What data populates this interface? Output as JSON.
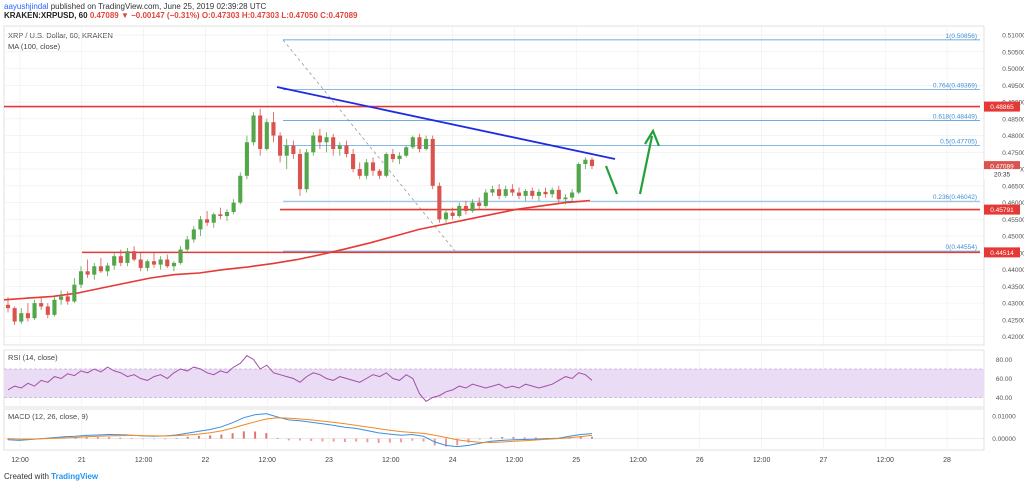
{
  "header": {
    "author": "aayushjindal",
    "published": "published on TradingView.com, June 25, 2019 02:39:28 UTC",
    "symbol_line": "KRAKEN:XRPUSD, 60",
    "change": "0.47089 ▼ −0.00147 (−0.31%) O:0.47303 H:0.47303 L:0.47050 C:0.47089"
  },
  "pane_labels": {
    "main_title": "XRP / U.S. Dollar, 60, KRAKEN",
    "ma_label": "MA (100, close)",
    "rsi_label": "RSI (14, close)",
    "macd_label": "MACD (12, 26, close, 9)"
  },
  "footer": {
    "created_with": "Created with",
    "brand": "TradingView"
  },
  "colors": {
    "up": "#53a64a",
    "down": "#d9534f",
    "ma": "#e53935",
    "trend": "#1e2be0",
    "hline": "#e53935",
    "fib": "#3f8fd6",
    "arrow": "#22a03a",
    "rsi_line": "#a34ea8",
    "rsi_band": "#eadcf5",
    "macd": "#3b8fe0",
    "signal": "#f08a24"
  },
  "chart_data": {
    "type": "candlestick",
    "title": "XRP / U.S. Dollar, 60, KRAKEN",
    "x_ticks": [
      "12:00",
      "21",
      "12:00",
      "22",
      "12:00",
      "23",
      "12:00",
      "24",
      "12:00",
      "25",
      "12:00",
      "26",
      "12:00",
      "27",
      "12:00",
      "28"
    ],
    "y_ticks": [
      "0.51000",
      "0.50500",
      "0.50000",
      "0.49500",
      "0.49000",
      "0.48500",
      "0.48000",
      "0.47500",
      "0.47000",
      "0.46500",
      "0.46000",
      "0.45500",
      "0.45000",
      "0.44500",
      "0.44000",
      "0.43500",
      "0.43000",
      "0.42500",
      "0.42000"
    ],
    "ylim": [
      0.4175,
      0.5127
    ],
    "price_badges": [
      {
        "label": "0.48865",
        "value": 0.48865
      },
      {
        "label": "0.47089",
        "value": 0.47089
      },
      {
        "label": "20:35",
        "value": 0.4685
      },
      {
        "label": "0.45791",
        "value": 0.45791
      },
      {
        "label": "0.44514",
        "value": 0.44514
      }
    ],
    "fib_levels": [
      {
        "label": "1(0.50856)",
        "value": 0.50856
      },
      {
        "label": "0.764(0.49369)",
        "value": 0.49369
      },
      {
        "label": "0.618(0.48449)",
        "value": 0.48449
      },
      {
        "label": "0.5(0.47705)",
        "value": 0.47705
      },
      {
        "label": "0.236(0.46042)",
        "value": 0.46042
      },
      {
        "label": "0(0.44554)",
        "value": 0.44554
      }
    ],
    "candles_ohlc": [
      [
        0.4295,
        0.4318,
        0.4272,
        0.4285
      ],
      [
        0.4285,
        0.429,
        0.4235,
        0.4245
      ],
      [
        0.4245,
        0.4285,
        0.4238,
        0.427
      ],
      [
        0.427,
        0.43,
        0.4245,
        0.4255
      ],
      [
        0.4255,
        0.431,
        0.425,
        0.43
      ],
      [
        0.43,
        0.432,
        0.428,
        0.429
      ],
      [
        0.429,
        0.43,
        0.4255,
        0.4265
      ],
      [
        0.4265,
        0.432,
        0.426,
        0.431
      ],
      [
        0.431,
        0.4338,
        0.4295,
        0.432
      ],
      [
        0.432,
        0.4335,
        0.4295,
        0.4305
      ],
      [
        0.4305,
        0.4375,
        0.43,
        0.4355
      ],
      [
        0.4355,
        0.441,
        0.4345,
        0.4395
      ],
      [
        0.4395,
        0.443,
        0.4375,
        0.4385
      ],
      [
        0.4385,
        0.442,
        0.437,
        0.441
      ],
      [
        0.441,
        0.4435,
        0.439,
        0.4395
      ],
      [
        0.4395,
        0.442,
        0.438,
        0.4412
      ],
      [
        0.4412,
        0.445,
        0.44,
        0.444
      ],
      [
        0.444,
        0.446,
        0.441,
        0.442
      ],
      [
        0.442,
        0.4465,
        0.441,
        0.4455
      ],
      [
        0.4455,
        0.447,
        0.4425,
        0.443
      ],
      [
        0.443,
        0.445,
        0.4395,
        0.4405
      ],
      [
        0.4405,
        0.443,
        0.4395,
        0.4425
      ],
      [
        0.4425,
        0.445,
        0.4405,
        0.4415
      ],
      [
        0.4415,
        0.444,
        0.44,
        0.443
      ],
      [
        0.443,
        0.4445,
        0.4405,
        0.441
      ],
      [
        0.441,
        0.4425,
        0.4395,
        0.442
      ],
      [
        0.442,
        0.447,
        0.4415,
        0.446
      ],
      [
        0.446,
        0.45,
        0.445,
        0.449
      ],
      [
        0.449,
        0.453,
        0.448,
        0.452
      ],
      [
        0.452,
        0.456,
        0.45,
        0.455
      ],
      [
        0.455,
        0.4575,
        0.453,
        0.454
      ],
      [
        0.454,
        0.457,
        0.4525,
        0.4565
      ],
      [
        0.4565,
        0.4585,
        0.455,
        0.456
      ],
      [
        0.456,
        0.458,
        0.4545,
        0.4572
      ],
      [
        0.4572,
        0.461,
        0.4565,
        0.46
      ],
      [
        0.46,
        0.469,
        0.4595,
        0.468
      ],
      [
        0.468,
        0.48,
        0.467,
        0.478
      ],
      [
        0.478,
        0.487,
        0.477,
        0.486
      ],
      [
        0.486,
        0.488,
        0.474,
        0.476
      ],
      [
        0.476,
        0.485,
        0.4755,
        0.484
      ],
      [
        0.484,
        0.487,
        0.478,
        0.48
      ],
      [
        0.48,
        0.481,
        0.472,
        0.474
      ],
      [
        0.474,
        0.479,
        0.47,
        0.477
      ],
      [
        0.477,
        0.4785,
        0.473,
        0.4745
      ],
      [
        0.4745,
        0.476,
        0.462,
        0.464
      ],
      [
        0.464,
        0.476,
        0.463,
        0.475
      ],
      [
        0.475,
        0.481,
        0.474,
        0.48
      ],
      [
        0.48,
        0.482,
        0.476,
        0.478
      ],
      [
        0.478,
        0.481,
        0.475,
        0.4795
      ],
      [
        0.4795,
        0.4805,
        0.474,
        0.476
      ],
      [
        0.476,
        0.478,
        0.474,
        0.477
      ],
      [
        0.477,
        0.4785,
        0.4735,
        0.4745
      ],
      [
        0.4745,
        0.476,
        0.469,
        0.47
      ],
      [
        0.47,
        0.472,
        0.467,
        0.468
      ],
      [
        0.468,
        0.473,
        0.467,
        0.472
      ],
      [
        0.472,
        0.4735,
        0.468,
        0.4695
      ],
      [
        0.4695,
        0.47,
        0.467,
        0.468
      ],
      [
        0.468,
        0.475,
        0.4675,
        0.4745
      ],
      [
        0.4745,
        0.476,
        0.472,
        0.473
      ],
      [
        0.473,
        0.475,
        0.4715,
        0.474
      ],
      [
        0.474,
        0.477,
        0.4735,
        0.4765
      ],
      [
        0.4765,
        0.48,
        0.476,
        0.4795
      ],
      [
        0.4795,
        0.4805,
        0.475,
        0.476
      ],
      [
        0.476,
        0.48,
        0.4755,
        0.479
      ],
      [
        0.479,
        0.48,
        0.464,
        0.465
      ],
      [
        0.465,
        0.466,
        0.454,
        0.455
      ],
      [
        0.455,
        0.458,
        0.454,
        0.457
      ],
      [
        0.457,
        0.4585,
        0.455,
        0.456
      ],
      [
        0.456,
        0.46,
        0.4555,
        0.459
      ],
      [
        0.459,
        0.4605,
        0.4565,
        0.4575
      ],
      [
        0.4575,
        0.461,
        0.457,
        0.46
      ],
      [
        0.46,
        0.4615,
        0.458,
        0.459
      ],
      [
        0.459,
        0.464,
        0.4585,
        0.463
      ],
      [
        0.463,
        0.465,
        0.462,
        0.464
      ],
      [
        0.464,
        0.4655,
        0.461,
        0.462
      ],
      [
        0.462,
        0.465,
        0.4615,
        0.464
      ],
      [
        0.464,
        0.4655,
        0.462,
        0.463
      ],
      [
        0.463,
        0.4645,
        0.461,
        0.462
      ],
      [
        0.462,
        0.464,
        0.4605,
        0.4635
      ],
      [
        0.4635,
        0.4645,
        0.461,
        0.462
      ],
      [
        0.462,
        0.464,
        0.4605,
        0.4632
      ],
      [
        0.4632,
        0.4645,
        0.4615,
        0.4625
      ],
      [
        0.4625,
        0.4645,
        0.4615,
        0.4638
      ],
      [
        0.4638,
        0.465,
        0.46,
        0.461
      ],
      [
        0.461,
        0.4625,
        0.4595,
        0.4615
      ],
      [
        0.4615,
        0.464,
        0.4605,
        0.463
      ],
      [
        0.463,
        0.472,
        0.4625,
        0.4715
      ],
      [
        0.4715,
        0.4735,
        0.47,
        0.4728
      ],
      [
        0.4728,
        0.4735,
        0.47,
        0.4709
      ]
    ],
    "ma100": [
      0.431,
      0.4315,
      0.432,
      0.433,
      0.4345,
      0.436,
      0.4375,
      0.4385,
      0.439,
      0.44,
      0.4408,
      0.4418,
      0.443,
      0.4445,
      0.4462,
      0.448,
      0.45,
      0.452,
      0.4535,
      0.455,
      0.4565,
      0.458,
      0.459,
      0.46,
      0.4606
    ],
    "trendline_upper": [
      [
        0.4945,
        0
      ],
      [
        0.473,
        1
      ]
    ],
    "rsi": {
      "y_ticks": [
        "80.00",
        "60.00",
        "40.00"
      ],
      "ylim": [
        30,
        90
      ],
      "band": [
        40,
        70
      ],
      "values": [
        48,
        52,
        50,
        55,
        52,
        58,
        56,
        62,
        60,
        65,
        63,
        68,
        66,
        70,
        67,
        72,
        68,
        66,
        62,
        64,
        60,
        58,
        62,
        64,
        60,
        66,
        70,
        68,
        72,
        70,
        66,
        64,
        68,
        66,
        72,
        76,
        84,
        80,
        70,
        74,
        66,
        64,
        62,
        60,
        56,
        62,
        66,
        64,
        60,
        58,
        62,
        60,
        58,
        56,
        60,
        64,
        62,
        66,
        60,
        58,
        64,
        60,
        44,
        36,
        40,
        42,
        46,
        48,
        52,
        50,
        54,
        52,
        50,
        52,
        54,
        50,
        52,
        50,
        54,
        52,
        50,
        52,
        54,
        58,
        62,
        60,
        66,
        64,
        58
      ]
    },
    "macd": {
      "y_ticks": [
        "0.01000",
        "0.00000"
      ],
      "ylim": [
        -0.005,
        0.013
      ],
      "macd_values": [
        -0.0005,
        -0.0008,
        -0.0004,
        0.0,
        0.0004,
        0.0008,
        0.001,
        0.0014,
        0.0016,
        0.0018,
        0.0017,
        0.0015,
        0.0012,
        0.001,
        0.0012,
        0.0016,
        0.0024,
        0.0032,
        0.004,
        0.0052,
        0.007,
        0.0092,
        0.0105,
        0.011,
        0.0095,
        0.0082,
        0.0078,
        0.0072,
        0.0065,
        0.0058,
        0.005,
        0.0045,
        0.0035,
        0.0025,
        0.002,
        0.0015,
        0.0018,
        0.001,
        -0.0015,
        -0.003,
        -0.0035,
        -0.003,
        -0.002,
        -0.0012,
        -0.0008,
        -0.0005,
        -0.0004,
        -0.0002,
        0.0,
        0.0002,
        0.001,
        0.0018,
        0.0022
      ],
      "signal_values": [
        0.0,
        -0.0002,
        -0.0002,
        -0.0001,
        0.0001,
        0.0003,
        0.0005,
        0.0008,
        0.001,
        0.0012,
        0.0013,
        0.0014,
        0.0013,
        0.0012,
        0.0012,
        0.0013,
        0.0016,
        0.002,
        0.0026,
        0.0034,
        0.0046,
        0.006,
        0.0074,
        0.0086,
        0.0092,
        0.009,
        0.0086,
        0.0082,
        0.0077,
        0.0071,
        0.0065,
        0.0058,
        0.0051,
        0.0044,
        0.0037,
        0.0031,
        0.0027,
        0.0023,
        0.0015,
        0.0005,
        -0.0005,
        -0.0012,
        -0.0016,
        -0.0017,
        -0.0015,
        -0.0012,
        -0.0009,
        -0.0006,
        -0.0003,
        0.0,
        0.0004,
        0.0009,
        0.0014
      ]
    }
  }
}
